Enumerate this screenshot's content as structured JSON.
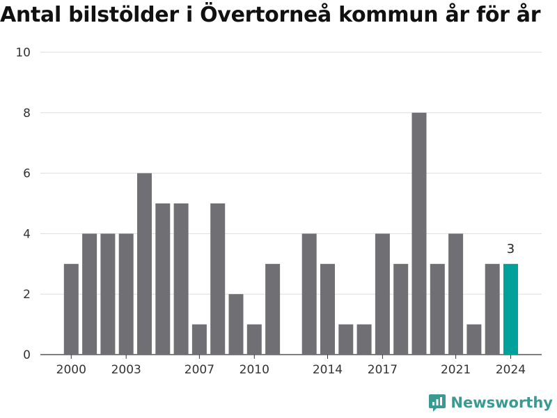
{
  "title": "Antal bilstölder i Övertorneå kommun år för år",
  "brand": {
    "name": "Newsworthy",
    "icon": "newsworthy-logo-icon",
    "color": "#3a9a92"
  },
  "colors": {
    "bar": "#707074",
    "highlight": "#00a19a",
    "grid": "#dddddd"
  },
  "chart_data": {
    "type": "bar",
    "title": "Antal bilstölder i Övertorneå kommun år för år",
    "xlabel": "",
    "ylabel": "",
    "x": [
      2000,
      2001,
      2002,
      2003,
      2004,
      2005,
      2006,
      2007,
      2008,
      2009,
      2010,
      2011,
      2012,
      2013,
      2014,
      2015,
      2016,
      2017,
      2018,
      2019,
      2020,
      2021,
      2022,
      2023,
      2024
    ],
    "values": [
      3,
      4,
      4,
      4,
      6,
      5,
      5,
      1,
      5,
      2,
      1,
      3,
      null,
      4,
      3,
      1,
      1,
      4,
      3,
      8,
      3,
      4,
      1,
      3,
      3
    ],
    "ylim": [
      0,
      10
    ],
    "yticks": [
      0,
      2,
      4,
      6,
      8,
      10
    ],
    "xticks": [
      2000,
      2003,
      2007,
      2010,
      2014,
      2017,
      2021,
      2024
    ],
    "highlight": 2024,
    "data_labels": [
      {
        "x": 2024,
        "text": "3"
      }
    ],
    "grid": true,
    "legend": "none"
  }
}
